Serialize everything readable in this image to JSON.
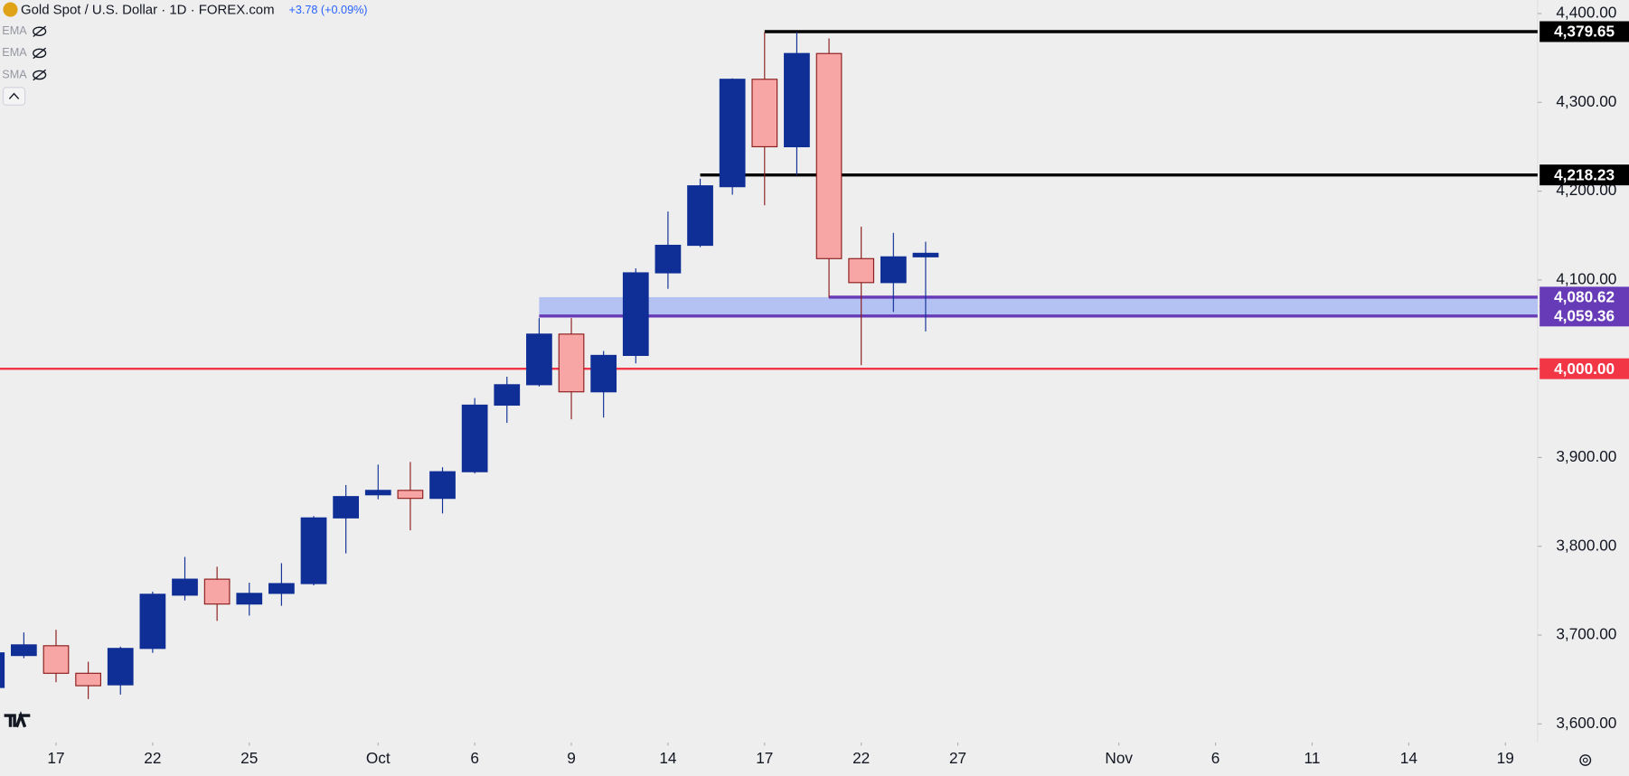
{
  "header": {
    "title": "Gold Spot / U.S. Dollar · 1D · FOREX.com",
    "change": "+3.78 (+0.09%)",
    "indicators": [
      "EMA",
      "EMA",
      "SMA"
    ]
  },
  "chart_data": {
    "type": "candlestick",
    "x": [
      0,
      1,
      2,
      3,
      4,
      5,
      6,
      7,
      8,
      9,
      10,
      11,
      12,
      13,
      14,
      15,
      16,
      17,
      18,
      19,
      20,
      21,
      22,
      23,
      24,
      25,
      26,
      27,
      28,
      29
    ],
    "open": [
      3641,
      3677,
      3688,
      3657,
      3644,
      3685,
      3745,
      3763,
      3735,
      3747,
      3758,
      3832,
      3858,
      3863,
      3854,
      3884,
      3959,
      3982,
      4039,
      3974,
      4015,
      4108,
      4139,
      4205,
      4326,
      4250,
      4355,
      4124,
      4097,
      4126
    ],
    "high": [
      3682,
      3703,
      3706,
      3670,
      3687,
      3749,
      3788,
      3777,
      3759,
      3781,
      3834,
      3869,
      3892,
      3895,
      3889,
      3967,
      3991,
      4057,
      4057,
      4020,
      4113,
      4177,
      4214,
      4327,
      4379,
      4379,
      4372,
      4160,
      4153,
      4143
    ],
    "low": [
      3635,
      3674,
      3647,
      3628,
      3633,
      3680,
      3739,
      3716,
      3722,
      3733,
      3756,
      3792,
      3853,
      3818,
      3837,
      3882,
      3939,
      3980,
      3943,
      3945,
      4006,
      4090,
      4137,
      4196,
      4184,
      4218,
      4080,
      4004,
      4064,
      4042
    ],
    "close": [
      3680,
      3689,
      3657,
      3643,
      3685,
      3746,
      3763,
      3735,
      3747,
      3758,
      3832,
      3856,
      3863,
      3854,
      3884,
      3959,
      3982,
      4039,
      3974,
      4015,
      4108,
      4139,
      4206,
      4326,
      4250,
      4355,
      4124,
      4097,
      4126,
      4130
    ],
    "up_color": "#0f2f96",
    "down_color": "#f7a5a5",
    "down_border": "#8b1c1c",
    "xlim": [
      0.26,
      48
    ],
    "ylim": [
      3579,
      4415
    ],
    "xticks": [
      {
        "value": 2,
        "label": "17"
      },
      {
        "value": 5,
        "label": "22"
      },
      {
        "value": 8,
        "label": "25"
      },
      {
        "value": 12,
        "label": "Oct"
      },
      {
        "value": 15,
        "label": "6"
      },
      {
        "value": 18,
        "label": "9"
      },
      {
        "value": 21,
        "label": "14"
      },
      {
        "value": 24,
        "label": "17"
      },
      {
        "value": 27,
        "label": "22"
      },
      {
        "value": 30,
        "label": "27"
      },
      {
        "value": 35,
        "label": "Nov"
      },
      {
        "value": 38,
        "label": "6"
      },
      {
        "value": 41,
        "label": "11"
      },
      {
        "value": 44,
        "label": "14"
      },
      {
        "value": 47,
        "label": "19"
      }
    ],
    "yticks": [
      {
        "value": 3600,
        "label": "3,600.00"
      },
      {
        "value": 3700,
        "label": "3,700.00"
      },
      {
        "value": 3800,
        "label": "3,800.00"
      },
      {
        "value": 3900,
        "label": "3,900.00"
      },
      {
        "value": 4000,
        "label": "4,000.00"
      },
      {
        "value": 4100,
        "label": "4,100.00"
      },
      {
        "value": 4200,
        "label": "4,200.00"
      },
      {
        "value": 4300,
        "label": "4,300.00"
      },
      {
        "value": 4400,
        "label": "4,400.00"
      }
    ],
    "levels": [
      {
        "value": 4379.65,
        "label": "4,379.65",
        "from": 24,
        "color": "#000000"
      },
      {
        "value": 4218.23,
        "label": "4,218.23",
        "from": 22,
        "color": "#000000"
      },
      {
        "value": 4080.62,
        "label": "4,080.62",
        "from": 26,
        "color": "#673ab7"
      },
      {
        "value": 4059.36,
        "label": "4,059.36",
        "from": 17,
        "color": "#673ab7"
      },
      {
        "value": 4000,
        "label": "4,000.00",
        "from": 0.26,
        "color": "#f23645"
      }
    ],
    "band": {
      "levels": [
        2,
        3
      ],
      "color": "#9fb1f4"
    }
  }
}
